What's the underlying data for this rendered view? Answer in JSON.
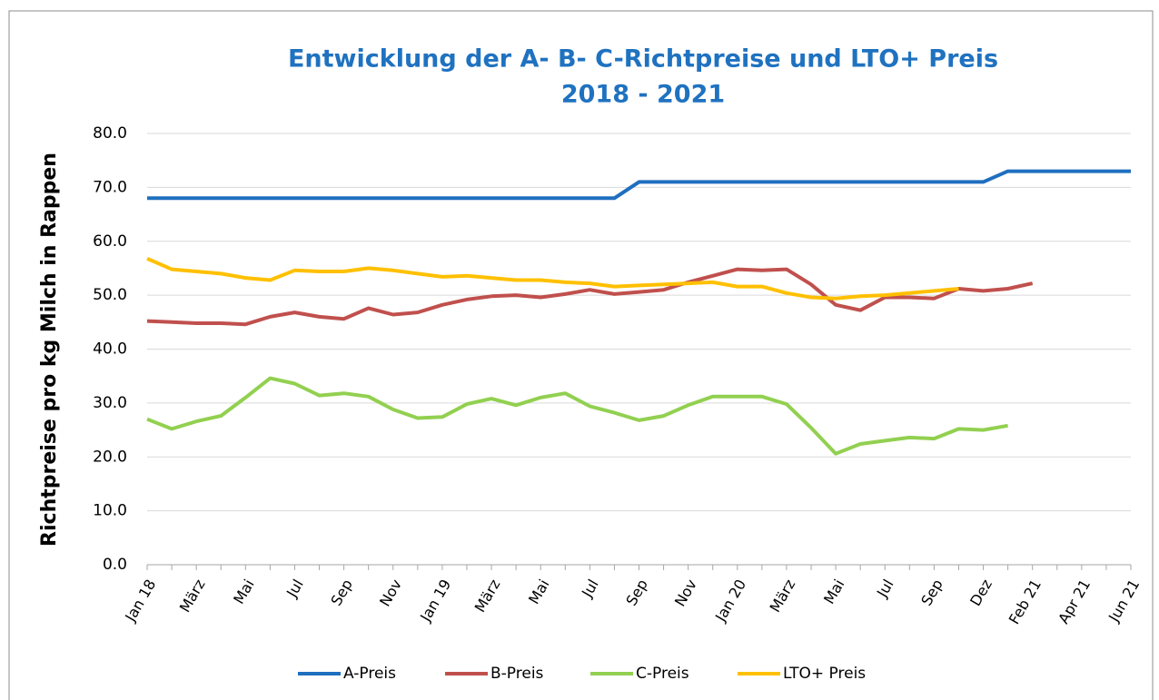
{
  "chart_data": {
    "type": "line",
    "title": "Entwicklung der A- B- C-Richtpreise und LTO+ Preis",
    "subtitle": "2018 - 2021",
    "y_label": "Richtpreise pro kg Milch in Rappen",
    "categories": [
      "Jan 18",
      null,
      "März",
      null,
      "Mai",
      null,
      "Jul",
      null,
      "Sep",
      null,
      "Nov",
      null,
      "Jan 19",
      null,
      "März",
      null,
      "Mai",
      null,
      "Jul",
      null,
      "Sep",
      null,
      "Nov",
      null,
      "Jan 20",
      null,
      "März",
      null,
      "Mai",
      null,
      "Jul",
      null,
      "Sep",
      null,
      "Dez",
      null,
      "Feb 21",
      null,
      "Apr 21",
      null,
      "Jun 21"
    ],
    "ylim": [
      0,
      80
    ],
    "yticks": [
      {
        "value": 0,
        "label": "0.0"
      },
      {
        "value": 10,
        "label": "10.0"
      },
      {
        "value": 20,
        "label": "20.0"
      },
      {
        "value": 30,
        "label": "30.0"
      },
      {
        "value": 40,
        "label": "40.0"
      },
      {
        "value": 50,
        "label": "50.0"
      },
      {
        "value": 60,
        "label": "60.0"
      },
      {
        "value": 70,
        "label": "70.0"
      },
      {
        "value": 80,
        "label": "80.0"
      }
    ],
    "grid": true,
    "legend": "bottom",
    "series": [
      {
        "name": "A-Preis",
        "color": "#1f6fbf",
        "values": [
          68,
          68,
          68,
          68,
          68,
          68,
          68,
          68,
          68,
          68,
          68,
          68,
          68,
          68,
          68,
          68,
          68,
          68,
          68,
          68,
          71,
          71,
          71,
          71,
          71,
          71,
          71,
          71,
          71,
          71,
          71,
          71,
          71,
          71,
          71,
          73,
          73,
          73,
          73,
          73,
          73
        ]
      },
      {
        "name": "B-Preis",
        "color": "#c0504d",
        "values": [
          45.2,
          45.0,
          44.8,
          44.8,
          44.6,
          46.0,
          46.8,
          46.0,
          45.6,
          47.6,
          46.4,
          46.8,
          48.2,
          49.2,
          49.8,
          50.0,
          49.6,
          50.2,
          51.0,
          50.2,
          50.6,
          51.0,
          52.4,
          53.6,
          54.8,
          54.6,
          54.8,
          52.0,
          48.2,
          47.2,
          49.6,
          49.6,
          49.4,
          51.2,
          50.8,
          51.2,
          52.2,
          null,
          null,
          null,
          null
        ]
      },
      {
        "name": "C-Preis",
        "color": "#92d050",
        "values": [
          27.0,
          25.2,
          26.6,
          27.6,
          31.0,
          34.6,
          33.6,
          31.4,
          31.8,
          31.2,
          28.8,
          27.2,
          27.4,
          29.8,
          30.8,
          29.6,
          31.0,
          31.8,
          29.4,
          28.2,
          26.8,
          27.6,
          29.6,
          31.2,
          31.2,
          31.2,
          29.8,
          25.4,
          20.6,
          22.4,
          23.0,
          23.6,
          23.4,
          25.2,
          25.0,
          25.8,
          null,
          null,
          null,
          null,
          null
        ]
      },
      {
        "name": "LTO+ Preis",
        "color": "#ffc000",
        "values": [
          56.8,
          54.8,
          54.4,
          54.0,
          53.2,
          52.8,
          54.6,
          54.4,
          54.4,
          55.0,
          54.6,
          54.0,
          53.4,
          53.6,
          53.2,
          52.8,
          52.8,
          52.4,
          52.2,
          51.6,
          51.8,
          52.0,
          52.2,
          52.4,
          51.6,
          51.6,
          50.4,
          49.6,
          49.4,
          49.8,
          50.0,
          50.4,
          50.8,
          51.2,
          null,
          null,
          null,
          null,
          null,
          null,
          null
        ]
      }
    ]
  }
}
